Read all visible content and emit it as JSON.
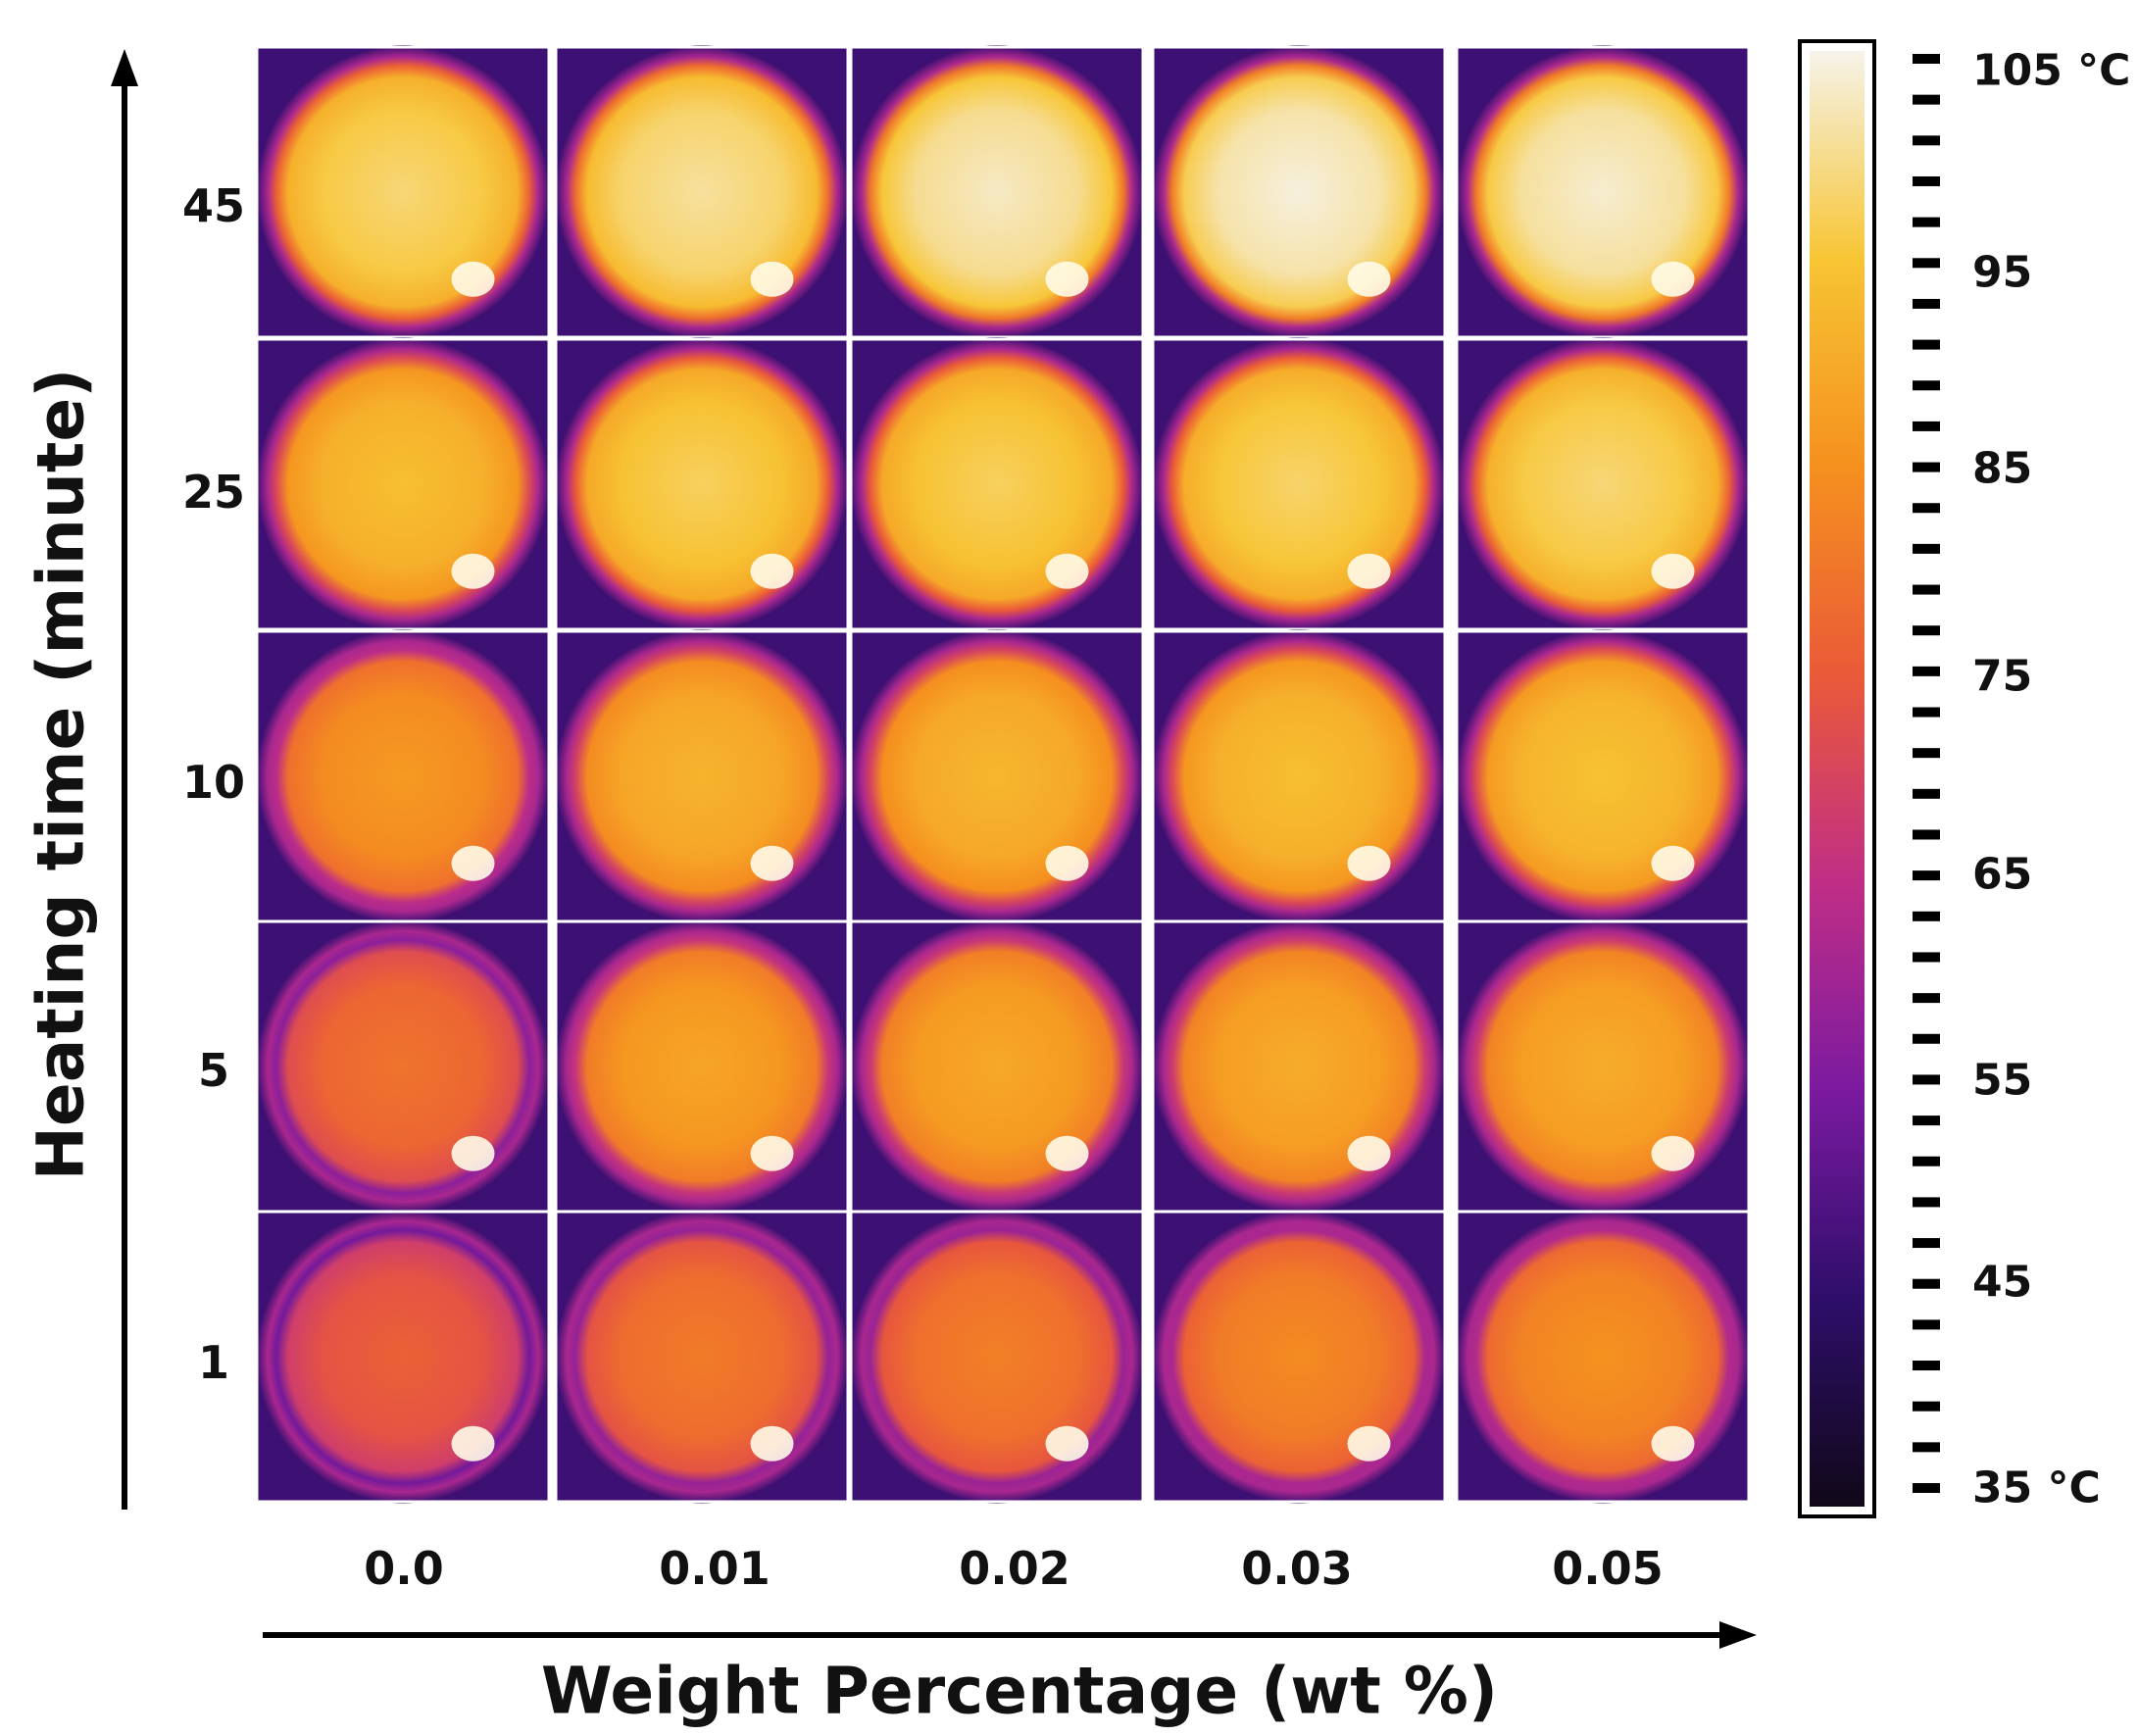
{
  "axes": {
    "y_title": "Heating time (minute)",
    "x_title": "Weight Percentage (wt %)"
  },
  "rows": [
    {
      "label": "45"
    },
    {
      "label": "25"
    },
    {
      "label": "10"
    },
    {
      "label": "5"
    },
    {
      "label": "1"
    }
  ],
  "columns": [
    {
      "label": "0.0"
    },
    {
      "label": "0.01"
    },
    {
      "label": "0.02"
    },
    {
      "label": "0.03"
    },
    {
      "label": "0.05"
    }
  ],
  "colorbar": {
    "labels": [
      "105 °C",
      "95",
      "85",
      "75",
      "65",
      "55",
      "45",
      "35 °C"
    ],
    "min": 35,
    "max": 105,
    "colormap": [
      "#100818",
      "#2e0e6a",
      "#7b1aa0",
      "#c02e86",
      "#ea5a38",
      "#f5901e",
      "#f7c534",
      "#f6f3ea"
    ]
  },
  "tile_heat_level": [
    [
      0.87,
      0.9,
      0.93,
      0.95,
      0.94
    ],
    [
      0.8,
      0.85,
      0.85,
      0.86,
      0.87
    ],
    [
      0.7,
      0.77,
      0.78,
      0.8,
      0.81
    ],
    [
      0.6,
      0.73,
      0.74,
      0.75,
      0.75
    ],
    [
      0.55,
      0.62,
      0.63,
      0.66,
      0.68
    ]
  ]
}
